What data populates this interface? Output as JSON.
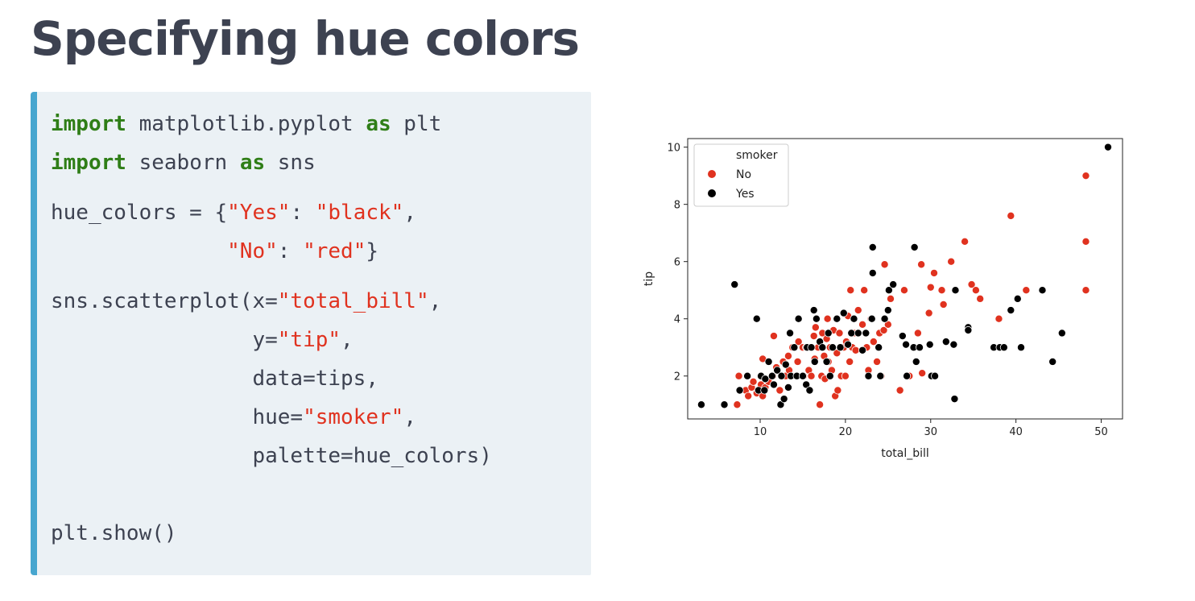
{
  "title": "Specifying hue colors",
  "code": {
    "l1": {
      "kw1": "import",
      "t1": " matplotlib.pyplot ",
      "kw2": "as",
      "t2": " plt"
    },
    "l2": {
      "kw1": "import",
      "t1": " seaborn ",
      "kw2": "as",
      "t2": " sns"
    },
    "l3": {
      "t1": "hue_colors = {",
      "s1": "\"Yes\"",
      "t2": ": ",
      "s2": "\"black\"",
      "t3": ","
    },
    "l4": {
      "t1": "              ",
      "s1": "\"No\"",
      "t2": ": ",
      "s2": "\"red\"",
      "t3": "}"
    },
    "l5": {
      "t1": "sns.scatterplot(x=",
      "s1": "\"total_bill\"",
      "t2": ","
    },
    "l6": {
      "t1": "                y=",
      "s1": "\"tip\"",
      "t2": ","
    },
    "l7": {
      "t1": "                data=tips,"
    },
    "l8": {
      "t1": "                hue=",
      "s1": "\"smoker\"",
      "t2": ","
    },
    "l9": {
      "t1": "                palette=hue_colors)"
    },
    "l10": {
      "t1": "plt.show()"
    }
  },
  "colors": {
    "keyword": "#2f7e17",
    "string": "#e0321f",
    "accent": "#47a6cf",
    "No": "#e0321f",
    "Yes": "#000000"
  },
  "chart_data": {
    "type": "scatter",
    "xlabel": "total_bill",
    "ylabel": "tip",
    "xlim": [
      1.5,
      52.5
    ],
    "ylim": [
      0.5,
      10.3
    ],
    "xticks": [
      10,
      20,
      30,
      40,
      50
    ],
    "yticks": [
      2,
      4,
      6,
      8,
      10
    ],
    "grid": false,
    "legend": {
      "title": "smoker",
      "placement": "top-left"
    },
    "series": [
      {
        "name": "No",
        "color": "#e0321f",
        "points": [
          [
            7.3,
            1.0
          ],
          [
            7.5,
            2.0
          ],
          [
            8.3,
            1.5
          ],
          [
            8.6,
            1.3
          ],
          [
            9.0,
            1.6
          ],
          [
            9.2,
            1.8
          ],
          [
            9.6,
            1.4
          ],
          [
            10.0,
            1.5
          ],
          [
            10.1,
            1.7
          ],
          [
            10.3,
            1.3
          ],
          [
            10.6,
            1.6
          ],
          [
            10.3,
            2.6
          ],
          [
            11.0,
            1.8
          ],
          [
            11.5,
            2.0
          ],
          [
            11.6,
            3.4
          ],
          [
            11.9,
            2.3
          ],
          [
            12.3,
            1.5
          ],
          [
            12.5,
            2.0
          ],
          [
            12.7,
            2.5
          ],
          [
            13.0,
            2.0
          ],
          [
            13.3,
            2.7
          ],
          [
            13.4,
            2.2
          ],
          [
            13.8,
            3.0
          ],
          [
            14.2,
            2.0
          ],
          [
            14.4,
            2.5
          ],
          [
            14.5,
            3.2
          ],
          [
            15.0,
            3.0
          ],
          [
            15.1,
            2.0
          ],
          [
            15.4,
            3.0
          ],
          [
            15.7,
            2.2
          ],
          [
            16.0,
            2.0
          ],
          [
            16.3,
            3.4
          ],
          [
            16.4,
            2.6
          ],
          [
            16.5,
            3.7
          ],
          [
            16.8,
            3.0
          ],
          [
            17.0,
            1.0
          ],
          [
            17.2,
            2.0
          ],
          [
            17.3,
            3.5
          ],
          [
            17.5,
            2.7
          ],
          [
            17.6,
            1.9
          ],
          [
            17.8,
            3.3
          ],
          [
            17.9,
            4.0
          ],
          [
            18.0,
            2.5
          ],
          [
            18.2,
            3.0
          ],
          [
            18.4,
            2.2
          ],
          [
            18.6,
            3.6
          ],
          [
            18.8,
            1.3
          ],
          [
            19.0,
            2.8
          ],
          [
            19.1,
            1.5
          ],
          [
            19.3,
            3.5
          ],
          [
            19.5,
            2.0
          ],
          [
            19.8,
            3.0
          ],
          [
            20.0,
            2.0
          ],
          [
            20.1,
            3.2
          ],
          [
            20.3,
            4.1
          ],
          [
            20.5,
            2.5
          ],
          [
            20.6,
            5.0
          ],
          [
            20.8,
            3.0
          ],
          [
            21.0,
            3.5
          ],
          [
            21.2,
            2.9
          ],
          [
            21.5,
            4.3
          ],
          [
            22.0,
            3.8
          ],
          [
            22.2,
            5.0
          ],
          [
            22.5,
            3.0
          ],
          [
            22.7,
            2.2
          ],
          [
            23.0,
            4.0
          ],
          [
            23.3,
            3.2
          ],
          [
            23.7,
            2.5
          ],
          [
            24.0,
            3.5
          ],
          [
            24.2,
            2.0
          ],
          [
            24.5,
            3.6
          ],
          [
            24.6,
            5.9
          ],
          [
            25.0,
            3.8
          ],
          [
            25.3,
            4.7
          ],
          [
            26.4,
            1.5
          ],
          [
            26.9,
            5.0
          ],
          [
            27.5,
            2.0
          ],
          [
            28.5,
            3.5
          ],
          [
            28.9,
            5.9
          ],
          [
            29.0,
            2.1
          ],
          [
            29.8,
            4.2
          ],
          [
            30.0,
            5.1
          ],
          [
            30.4,
            5.6
          ],
          [
            31.3,
            5.0
          ],
          [
            31.5,
            4.5
          ],
          [
            32.4,
            6.0
          ],
          [
            34.0,
            6.7
          ],
          [
            34.8,
            5.2
          ],
          [
            35.3,
            5.0
          ],
          [
            35.8,
            4.7
          ],
          [
            38.0,
            4.0
          ],
          [
            39.4,
            7.6
          ],
          [
            41.2,
            5.0
          ],
          [
            48.2,
            9.0
          ],
          [
            48.2,
            6.7
          ],
          [
            48.2,
            5.0
          ]
        ]
      },
      {
        "name": "Yes",
        "color": "#000000",
        "points": [
          [
            3.1,
            1.0
          ],
          [
            5.8,
            1.0
          ],
          [
            7.0,
            5.2
          ],
          [
            7.6,
            1.5
          ],
          [
            8.5,
            2.0
          ],
          [
            9.6,
            4.0
          ],
          [
            9.8,
            1.5
          ],
          [
            10.1,
            2.0
          ],
          [
            10.5,
            1.5
          ],
          [
            10.6,
            1.9
          ],
          [
            11.0,
            2.5
          ],
          [
            11.4,
            2.0
          ],
          [
            11.6,
            1.7
          ],
          [
            12.0,
            2.2
          ],
          [
            12.4,
            1.0
          ],
          [
            12.5,
            2.0
          ],
          [
            12.8,
            1.2
          ],
          [
            13.0,
            2.4
          ],
          [
            13.3,
            1.6
          ],
          [
            13.5,
            3.5
          ],
          [
            13.6,
            2.0
          ],
          [
            14.0,
            3.0
          ],
          [
            14.3,
            2.0
          ],
          [
            14.5,
            4.0
          ],
          [
            15.0,
            2.0
          ],
          [
            15.4,
            1.7
          ],
          [
            15.5,
            3.0
          ],
          [
            15.8,
            1.5
          ],
          [
            16.0,
            3.0
          ],
          [
            16.3,
            4.3
          ],
          [
            16.4,
            2.5
          ],
          [
            16.6,
            4.0
          ],
          [
            17.0,
            3.2
          ],
          [
            17.3,
            3.0
          ],
          [
            17.8,
            2.5
          ],
          [
            18.0,
            3.5
          ],
          [
            18.2,
            2.0
          ],
          [
            18.5,
            3.0
          ],
          [
            19.0,
            4.0
          ],
          [
            19.4,
            3.0
          ],
          [
            19.8,
            4.2
          ],
          [
            20.3,
            3.1
          ],
          [
            20.7,
            3.5
          ],
          [
            21.0,
            4.0
          ],
          [
            21.5,
            3.5
          ],
          [
            22.0,
            2.9
          ],
          [
            22.4,
            3.5
          ],
          [
            22.7,
            2.0
          ],
          [
            23.1,
            4.0
          ],
          [
            23.2,
            6.5
          ],
          [
            23.2,
            5.6
          ],
          [
            23.9,
            3.0
          ],
          [
            24.1,
            2.0
          ],
          [
            24.6,
            4.0
          ],
          [
            25.0,
            4.3
          ],
          [
            25.1,
            5.0
          ],
          [
            25.6,
            5.2
          ],
          [
            26.7,
            3.4
          ],
          [
            27.1,
            3.1
          ],
          [
            27.2,
            2.0
          ],
          [
            28.0,
            3.0
          ],
          [
            28.1,
            6.5
          ],
          [
            28.3,
            2.5
          ],
          [
            28.7,
            3.0
          ],
          [
            29.9,
            3.1
          ],
          [
            30.1,
            2.0
          ],
          [
            30.5,
            2.0
          ],
          [
            31.8,
            3.2
          ],
          [
            32.7,
            3.1
          ],
          [
            32.8,
            1.2
          ],
          [
            32.9,
            5.0
          ],
          [
            34.4,
            3.7
          ],
          [
            34.4,
            3.6
          ],
          [
            37.4,
            3.0
          ],
          [
            38.1,
            3.0
          ],
          [
            38.6,
            3.0
          ],
          [
            39.4,
            4.3
          ],
          [
            40.6,
            3.0
          ],
          [
            40.2,
            4.7
          ],
          [
            43.1,
            5.0
          ],
          [
            44.3,
            2.5
          ],
          [
            45.4,
            3.5
          ],
          [
            50.8,
            10.0
          ]
        ]
      }
    ]
  }
}
